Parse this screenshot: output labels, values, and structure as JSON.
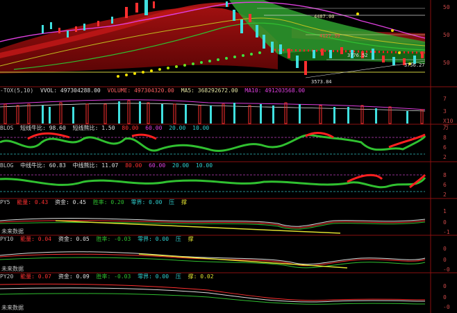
{
  "price": {
    "labels": [
      "4487.00",
      "4127.39",
      "3776.52",
      "3756.27",
      "3573.84"
    ],
    "right_labels": [
      "50",
      "50",
      "50"
    ]
  },
  "vol": {
    "prefix": "-TOX(5,10)",
    "vvol": "VVOL: 497304288.00",
    "volume": "VOLUME: 497304320.00",
    "ma5": "MA5: 368292672.00",
    "ma10": "MA10: 491203568.00",
    "right_labels": [
      "7",
      "3",
      "X10万"
    ]
  },
  "p1": {
    "name": "BLOS",
    "t1": "短线牛比: 98.60",
    "t2": "短线熊比: 1.50",
    "t3": "80.00",
    "t4": "60.00",
    "t5": "20.00",
    "t6": "10.00",
    "right_labels": [
      "8",
      "6",
      "2"
    ]
  },
  "p2": {
    "name": "BLOG",
    "t1": "中线牛比: 60.83",
    "t2": "中线熊比: 11.07",
    "t3": "80.00",
    "t4": "60.00",
    "t5": "20.00",
    "t6": "10.00",
    "right_labels": [
      "8",
      "6",
      "2"
    ]
  },
  "p3": {
    "name": "PY5",
    "t1": "能量: 0.43",
    "t2": "资金: 0.45",
    "t3": "胜率: 0.20",
    "t4": "零界: 0.00",
    "t5": "压",
    "t6": "撑",
    "note": "未来数据",
    "right_labels": [
      "1",
      "0",
      "-1"
    ]
  },
  "p4": {
    "name": "PY10",
    "t1": "能量: 0.04",
    "t2": "资金: 0.05",
    "t3": "胜率: -0.03",
    "t4": "零界: 0.00",
    "t5": "压",
    "t6": "撑",
    "note": "未来数据",
    "right_labels": [
      "0",
      "0",
      "-0"
    ]
  },
  "p5": {
    "name": "PY20",
    "t1": "能量: 0.07",
    "t2": "资金: 0.09",
    "t3": "胜率: -0.03",
    "t4": "零界: 0.00",
    "t5": "压",
    "t6": "撑: 0.02",
    "note": "未来数据",
    "right_labels": [
      "0",
      "0",
      "-0"
    ]
  }
}
